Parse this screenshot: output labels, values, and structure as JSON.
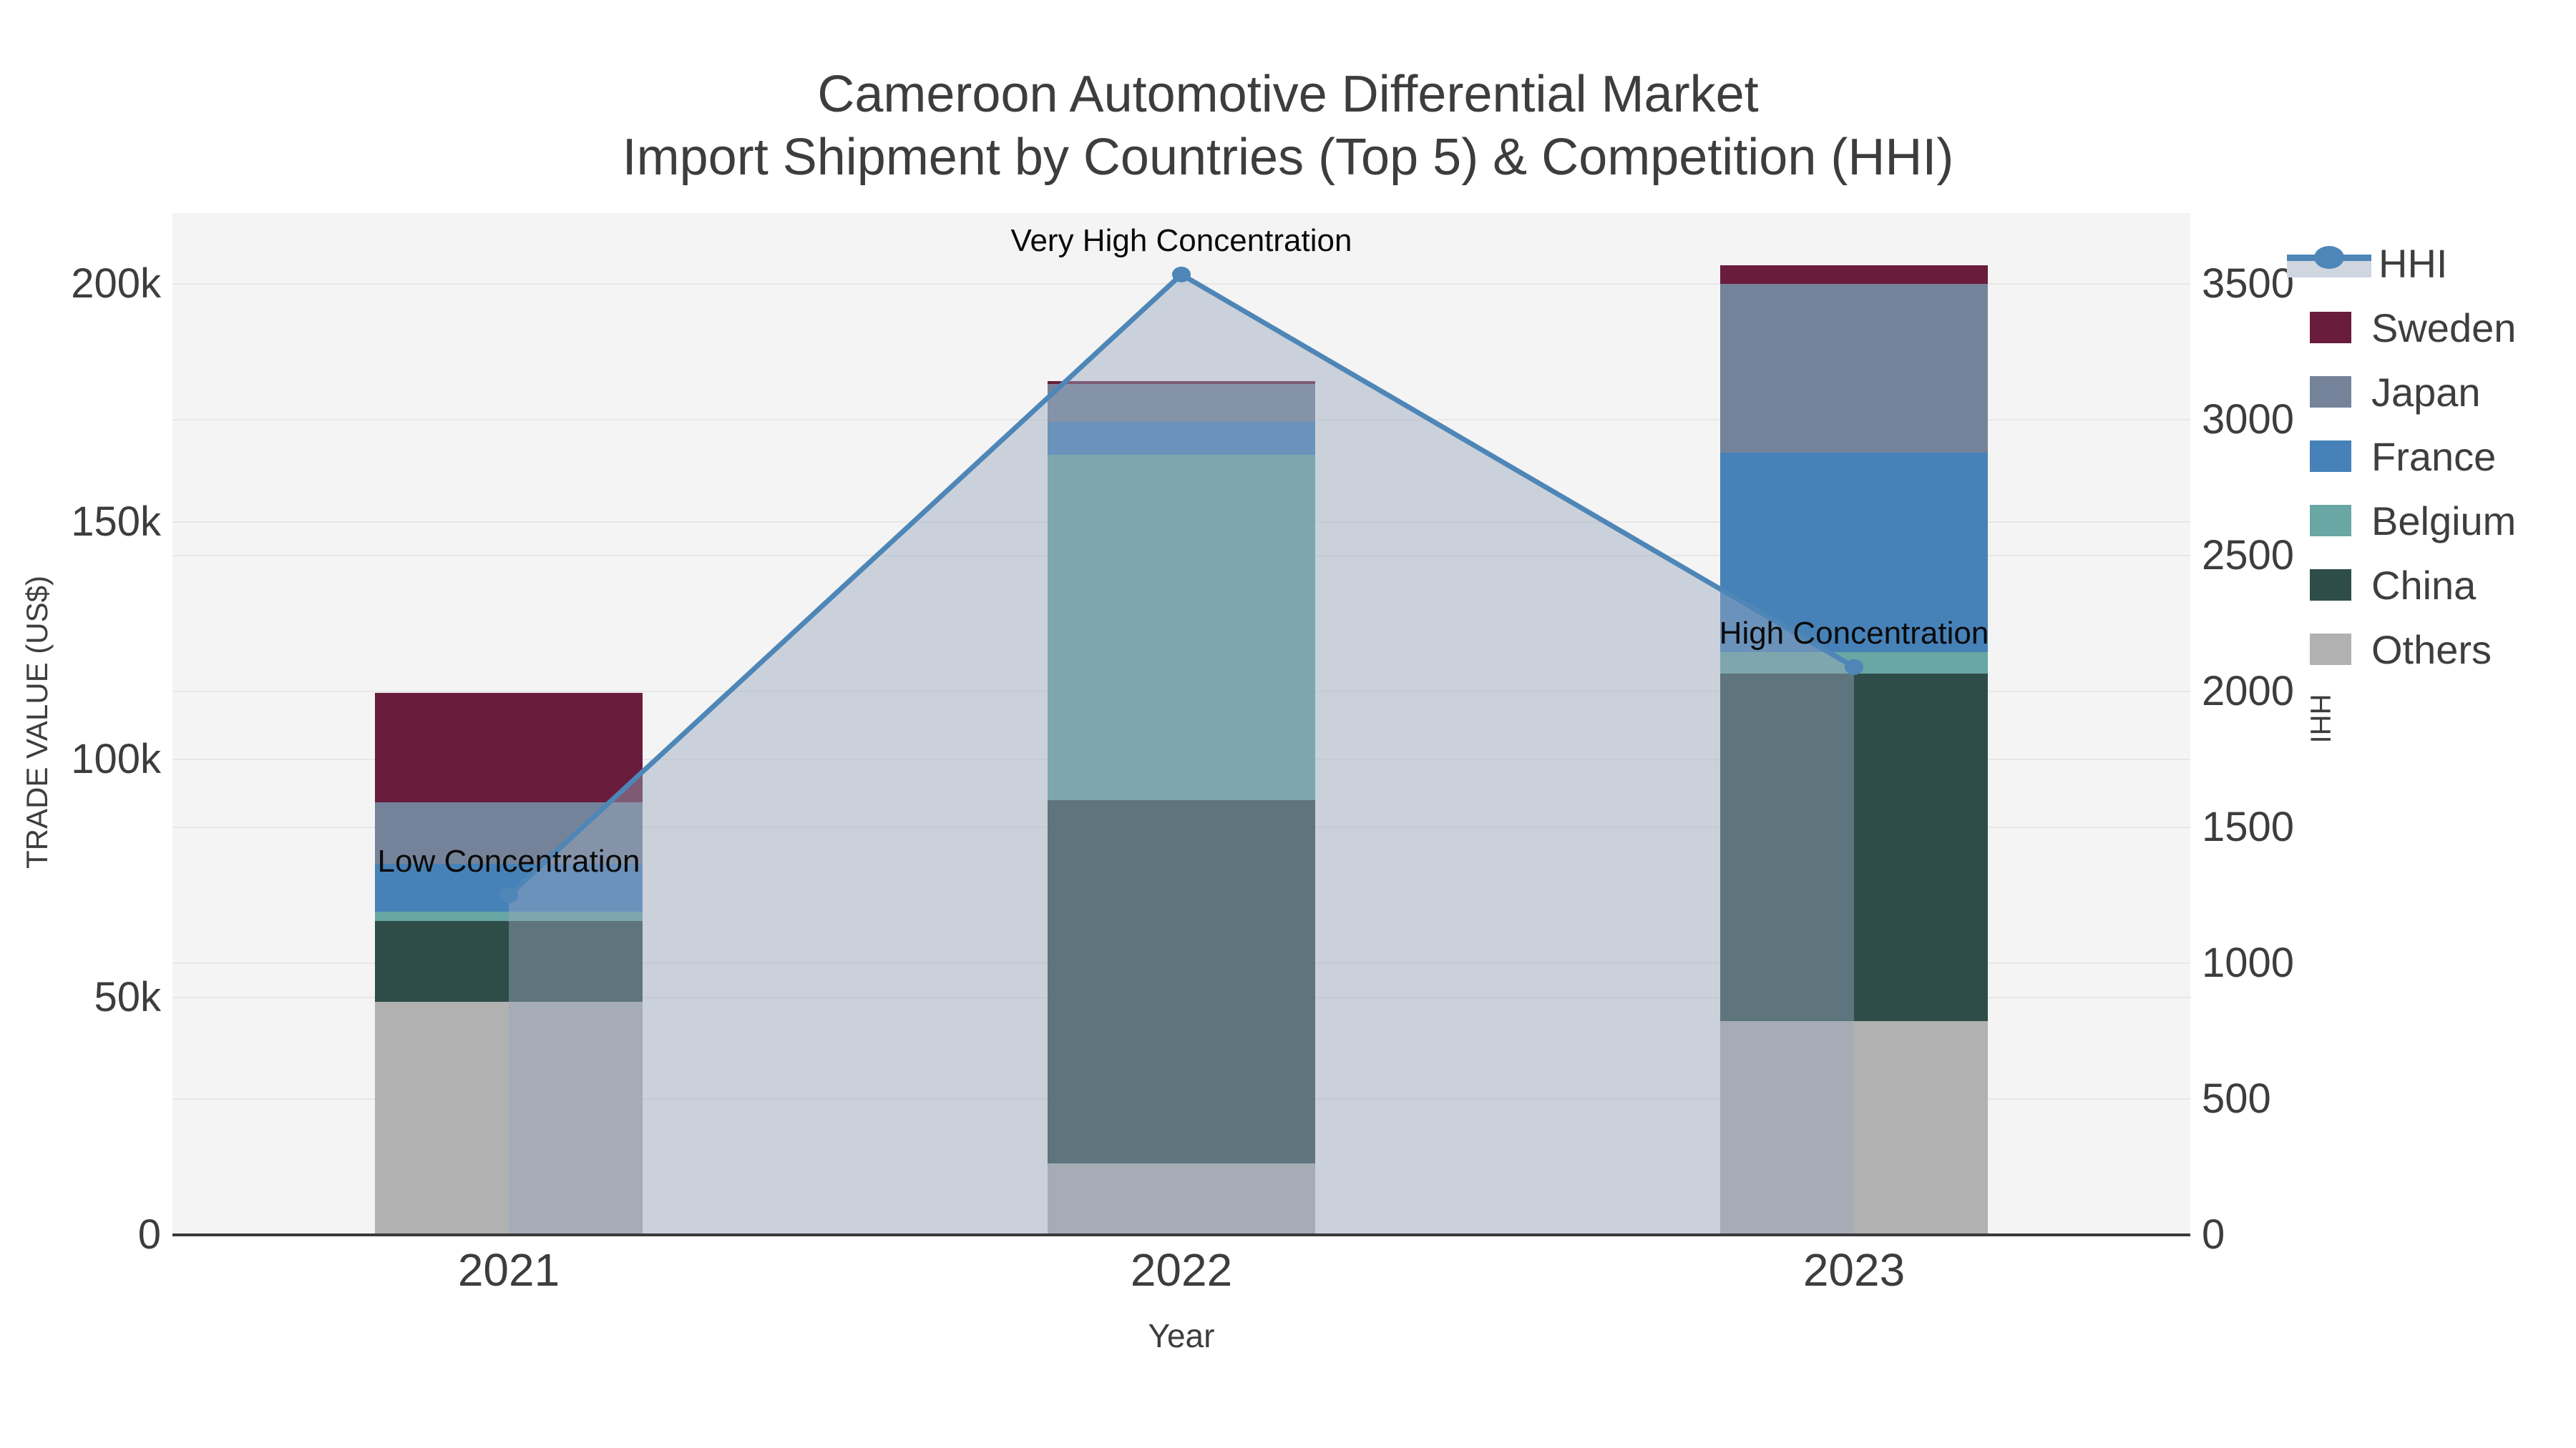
{
  "title": {
    "line1": "Cameroon Automotive Differential Market",
    "line2": "Import Shipment by Countries (Top 5) & Competition (HHI)"
  },
  "axes": {
    "x": {
      "label": "Year"
    },
    "y_left": {
      "label": "TRADE VALUE (US$)"
    },
    "y_right": {
      "label": "HHI"
    }
  },
  "legend": {
    "entries": [
      "HHI",
      "Sweden",
      "Japan",
      "France",
      "Belgium",
      "China",
      "Others"
    ]
  },
  "chart_data": {
    "type": "bar",
    "subtype": "stacked_bars_with_line_overlay",
    "title": "Cameroon Automotive Differential Market — Import Shipment by Countries (Top 5) & Competition (HHI)",
    "categories": [
      "2021",
      "2022",
      "2023"
    ],
    "stack_order_bottom_to_top": [
      "Others",
      "China",
      "Belgium",
      "France",
      "Japan",
      "Sweden"
    ],
    "series": [
      {
        "name": "Others",
        "color": "#b1b1b1",
        "values": [
          49000,
          15000,
          45000
        ]
      },
      {
        "name": "China",
        "color": "#2e4d49",
        "values": [
          17000,
          76500,
          73000
        ]
      },
      {
        "name": "Belgium",
        "color": "#68a7a3",
        "values": [
          2000,
          72500,
          4500
        ]
      },
      {
        "name": "France",
        "color": "#4682b8",
        "values": [
          10000,
          7000,
          42000
        ]
      },
      {
        "name": "Japan",
        "color": "#75839a",
        "values": [
          13000,
          8000,
          35500
        ]
      },
      {
        "name": "Sweden",
        "color": "#691c3b",
        "values": [
          23000,
          500,
          4000
        ]
      }
    ],
    "bar_totals": [
      114000,
      179500,
      204000
    ],
    "line_series": {
      "name": "HHI",
      "axis": "right",
      "values": [
        1250,
        3535,
        2090
      ],
      "color": "#4e86b7",
      "area_fill": "rgba(154,166,189,0.45)"
    },
    "annotations": [
      {
        "text": "Low Concentration",
        "category": "2021",
        "hhi": 1250
      },
      {
        "text": "Very High Concentration",
        "category": "2022",
        "hhi": 3535
      },
      {
        "text": "High Concentration",
        "category": "2023",
        "hhi": 2090
      }
    ],
    "xlabel": "Year",
    "ylabel_left": "TRADE VALUE (US$)",
    "ylabel_right": "HHI",
    "y_left_ticks": [
      {
        "value": 0,
        "label": "0"
      },
      {
        "value": 50000,
        "label": "50k"
      },
      {
        "value": 100000,
        "label": "100k"
      },
      {
        "value": 150000,
        "label": "150k"
      },
      {
        "value": 200000,
        "label": "200k"
      }
    ],
    "y_left_range": [
      0,
      214900
    ],
    "y_right_ticks": [
      {
        "value": 0,
        "label": "0"
      },
      {
        "value": 500,
        "label": "500"
      },
      {
        "value": 1000,
        "label": "1000"
      },
      {
        "value": 1500,
        "label": "1500"
      },
      {
        "value": 2000,
        "label": "2000"
      },
      {
        "value": 2500,
        "label": "2500"
      },
      {
        "value": 3000,
        "label": "3000"
      },
      {
        "value": 3500,
        "label": "3500"
      }
    ],
    "y_right_range": [
      0,
      3761
    ],
    "grid": true,
    "legend_position": "right",
    "colors": {
      "plot_background": "#f4f4f4",
      "figure_background": "#ffffff",
      "gridline": "#e7e7e7",
      "axis_line": "#3a3a3a",
      "text": "#3d3d3d",
      "annotation_text": "#0a0a0a"
    }
  }
}
